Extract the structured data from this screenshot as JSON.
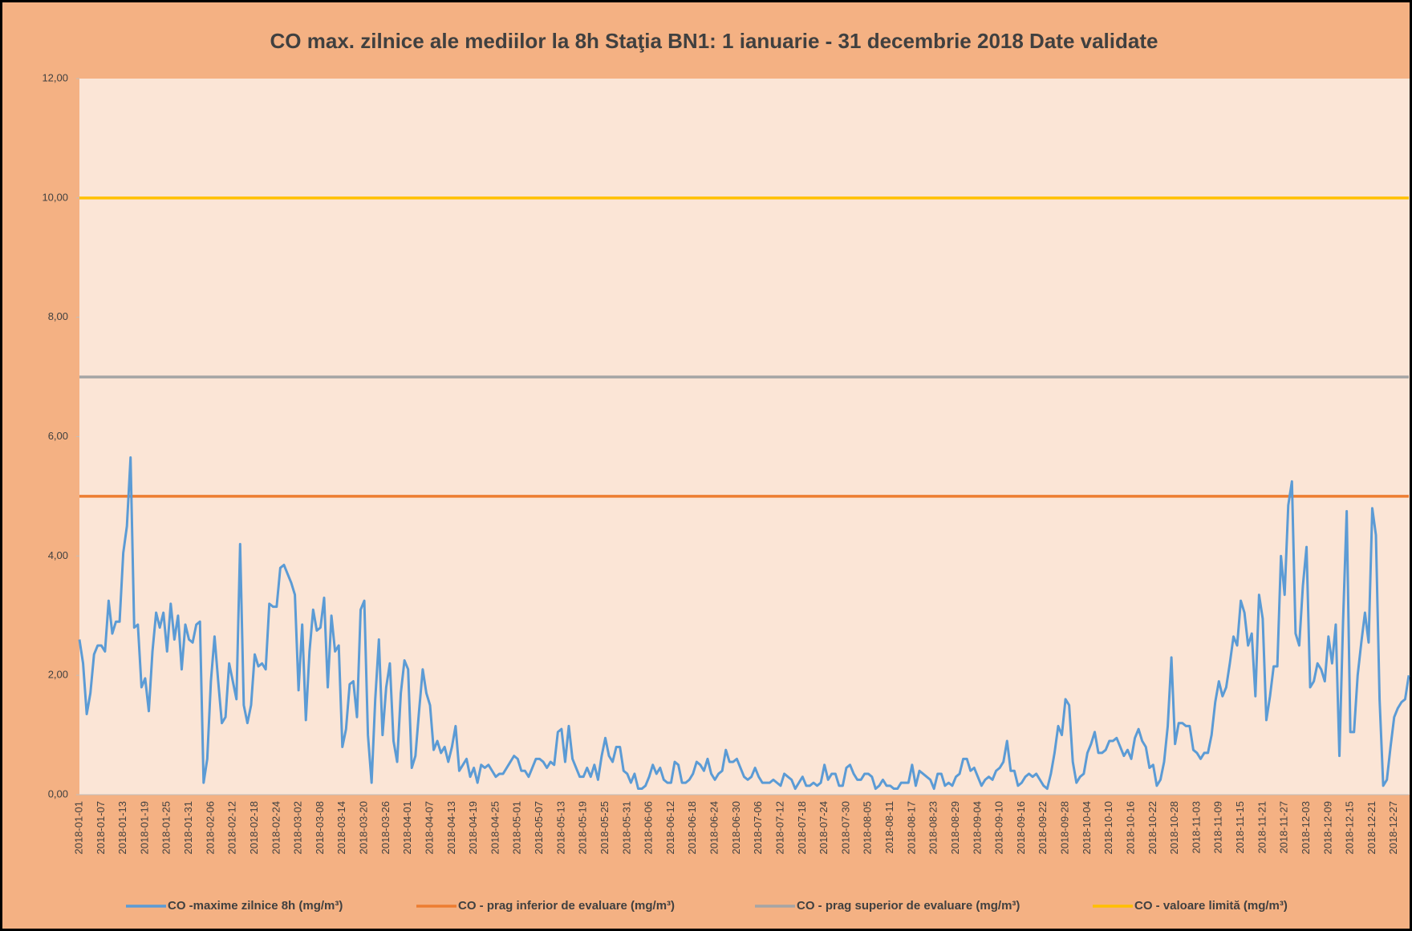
{
  "chart_data": {
    "type": "line",
    "title": "CO max. zilnice ale mediilor la 8h Staţia BN1: 1 ianuarie  - 31 decembrie 2018 Date validate",
    "categories": [
      "2018-01-01",
      null,
      null,
      null,
      null,
      null,
      "2018-01-07",
      null,
      null,
      null,
      null,
      null,
      "2018-01-13",
      null,
      null,
      null,
      null,
      null,
      "2018-01-19",
      null,
      null,
      null,
      null,
      null,
      "2018-01-25",
      null,
      null,
      null,
      null,
      null,
      "2018-01-31",
      null,
      null,
      null,
      null,
      null,
      "2018-02-06",
      null,
      null,
      null,
      null,
      null,
      "2018-02-12",
      null,
      null,
      null,
      null,
      null,
      "2018-02-18",
      null,
      null,
      null,
      null,
      null,
      "2018-02-24",
      null,
      null,
      null,
      null,
      null,
      "2018-03-02",
      null,
      null,
      null,
      null,
      null,
      "2018-03-08",
      null,
      null,
      null,
      null,
      null,
      "2018-03-14",
      null,
      null,
      null,
      null,
      null,
      "2018-03-20",
      null,
      null,
      null,
      null,
      null,
      "2018-03-26",
      null,
      null,
      null,
      null,
      null,
      "2018-04-01",
      null,
      null,
      null,
      null,
      null,
      "2018-04-07",
      null,
      null,
      null,
      null,
      null,
      "2018-04-13",
      null,
      null,
      null,
      null,
      null,
      "2018-04-19",
      null,
      null,
      null,
      null,
      null,
      "2018-04-25",
      null,
      null,
      null,
      null,
      null,
      "2018-05-01",
      null,
      null,
      null,
      null,
      null,
      "2018-05-07",
      null,
      null,
      null,
      null,
      null,
      "2018-05-13",
      null,
      null,
      null,
      null,
      null,
      "2018-05-19",
      null,
      null,
      null,
      null,
      null,
      "2018-05-25",
      null,
      null,
      null,
      null,
      null,
      "2018-05-31",
      null,
      null,
      null,
      null,
      null,
      "2018-06-06",
      null,
      null,
      null,
      null,
      null,
      "2018-06-12",
      null,
      null,
      null,
      null,
      null,
      "2018-06-18",
      null,
      null,
      null,
      null,
      null,
      "2018-06-24",
      null,
      null,
      null,
      null,
      null,
      "2018-06-30",
      null,
      null,
      null,
      null,
      null,
      "2018-07-06",
      null,
      null,
      null,
      null,
      null,
      "2018-07-12",
      null,
      null,
      null,
      null,
      null,
      "2018-07-18",
      null,
      null,
      null,
      null,
      null,
      "2018-07-24",
      null,
      null,
      null,
      null,
      null,
      "2018-07-30",
      null,
      null,
      null,
      null,
      null,
      "2018-08-05",
      null,
      null,
      null,
      null,
      null,
      "2018-08-11",
      null,
      null,
      null,
      null,
      null,
      "2018-08-17",
      null,
      null,
      null,
      null,
      null,
      "2018-08-23",
      null,
      null,
      null,
      null,
      null,
      "2018-08-29",
      null,
      null,
      null,
      null,
      null,
      "2018-09-04",
      null,
      null,
      null,
      null,
      null,
      "2018-09-10",
      null,
      null,
      null,
      null,
      null,
      "2018-09-16",
      null,
      null,
      null,
      null,
      null,
      "2018-09-22",
      null,
      null,
      null,
      null,
      null,
      "2018-09-28",
      null,
      null,
      null,
      null,
      null,
      "2018-10-04",
      null,
      null,
      null,
      null,
      null,
      "2018-10-10",
      null,
      null,
      null,
      null,
      null,
      "2018-10-16",
      null,
      null,
      null,
      null,
      null,
      "2018-10-22",
      null,
      null,
      null,
      null,
      null,
      "2018-10-28",
      null,
      null,
      null,
      null,
      null,
      "2018-11-03",
      null,
      null,
      null,
      null,
      null,
      "2018-11-09",
      null,
      null,
      null,
      null,
      null,
      "2018-11-15",
      null,
      null,
      null,
      null,
      null,
      "2018-11-21",
      null,
      null,
      null,
      null,
      null,
      "2018-11-27",
      null,
      null,
      null,
      null,
      null,
      "2018-12-03",
      null,
      null,
      null,
      null,
      null,
      "2018-12-09",
      null,
      null,
      null,
      null,
      null,
      "2018-12-15",
      null,
      null,
      null,
      null,
      null,
      "2018-12-21",
      null,
      null,
      null,
      null,
      null,
      "2018-12-27",
      null,
      null,
      null,
      null
    ],
    "series": [
      {
        "name": "CO -maxime zilnice 8h  (mg/m³)",
        "color": "#5b9bd5",
        "values": [
          2.6,
          2.2,
          1.35,
          1.7,
          2.35,
          2.5,
          2.5,
          2.4,
          3.25,
          2.7,
          2.9,
          2.9,
          4.05,
          4.5,
          5.65,
          2.8,
          2.85,
          1.8,
          1.95,
          1.4,
          2.4,
          3.05,
          2.8,
          3.05,
          2.4,
          3.2,
          2.6,
          3.0,
          2.1,
          2.85,
          2.6,
          2.55,
          2.85,
          2.9,
          0.2,
          0.6,
          1.9,
          2.65,
          1.9,
          1.2,
          1.3,
          2.2,
          1.9,
          1.6,
          4.2,
          1.5,
          1.2,
          1.5,
          2.35,
          2.15,
          2.2,
          2.1,
          3.2,
          3.15,
          3.15,
          3.8,
          3.85,
          3.7,
          3.55,
          3.35,
          1.75,
          2.85,
          1.25,
          2.4,
          3.1,
          2.75,
          2.8,
          3.3,
          1.8,
          3.0,
          2.4,
          2.5,
          0.8,
          1.1,
          1.85,
          1.9,
          1.3,
          3.1,
          3.25,
          1.0,
          0.2,
          1.6,
          2.6,
          1.0,
          1.8,
          2.2,
          0.9,
          0.55,
          1.7,
          2.25,
          2.1,
          0.45,
          0.65,
          1.4,
          2.1,
          1.7,
          1.5,
          0.75,
          0.9,
          0.7,
          0.8,
          0.55,
          0.8,
          1.15,
          0.4,
          0.5,
          0.6,
          0.3,
          0.45,
          0.2,
          0.5,
          0.45,
          0.5,
          0.4,
          0.3,
          0.35,
          0.35,
          0.45,
          0.55,
          0.65,
          0.6,
          0.4,
          0.4,
          0.3,
          0.45,
          0.6,
          0.6,
          0.55,
          0.45,
          0.55,
          0.5,
          1.05,
          1.1,
          0.55,
          1.15,
          0.6,
          0.45,
          0.3,
          0.3,
          0.45,
          0.3,
          0.5,
          0.25,
          0.65,
          0.95,
          0.65,
          0.55,
          0.8,
          0.8,
          0.4,
          0.35,
          0.2,
          0.35,
          0.1,
          0.1,
          0.15,
          0.3,
          0.5,
          0.35,
          0.45,
          0.25,
          0.2,
          0.2,
          0.55,
          0.5,
          0.2,
          0.2,
          0.25,
          0.35,
          0.55,
          0.5,
          0.4,
          0.6,
          0.35,
          0.25,
          0.35,
          0.4,
          0.75,
          0.55,
          0.55,
          0.6,
          0.45,
          0.3,
          0.25,
          0.3,
          0.45,
          0.3,
          0.2,
          0.2,
          0.2,
          0.25,
          0.2,
          0.15,
          0.35,
          0.3,
          0.25,
          0.1,
          0.2,
          0.3,
          0.15,
          0.15,
          0.2,
          0.15,
          0.2,
          0.5,
          0.25,
          0.35,
          0.35,
          0.15,
          0.15,
          0.45,
          0.5,
          0.35,
          0.25,
          0.25,
          0.35,
          0.35,
          0.3,
          0.1,
          0.15,
          0.25,
          0.15,
          0.15,
          0.1,
          0.1,
          0.2,
          0.2,
          0.2,
          0.5,
          0.15,
          0.4,
          0.35,
          0.3,
          0.25,
          0.1,
          0.35,
          0.35,
          0.15,
          0.2,
          0.15,
          0.3,
          0.35,
          0.6,
          0.6,
          0.4,
          0.45,
          0.3,
          0.15,
          0.25,
          0.3,
          0.25,
          0.4,
          0.45,
          0.55,
          0.9,
          0.4,
          0.4,
          0.15,
          0.2,
          0.3,
          0.35,
          0.3,
          0.35,
          0.25,
          0.15,
          0.1,
          0.35,
          0.7,
          1.15,
          1.0,
          1.6,
          1.5,
          0.55,
          0.2,
          0.3,
          0.35,
          0.7,
          0.85,
          1.05,
          0.7,
          0.7,
          0.75,
          0.9,
          0.9,
          0.95,
          0.8,
          0.65,
          0.75,
          0.6,
          0.95,
          1.1,
          0.9,
          0.8,
          0.45,
          0.5,
          0.15,
          0.25,
          0.55,
          1.15,
          2.3,
          0.85,
          1.2,
          1.2,
          1.15,
          1.15,
          0.75,
          0.7,
          0.6,
          0.7,
          0.7,
          1.0,
          1.55,
          1.9,
          1.65,
          1.8,
          2.2,
          2.65,
          2.5,
          3.25,
          3.05,
          2.5,
          2.7,
          1.65,
          3.35,
          2.95,
          1.25,
          1.65,
          2.15,
          2.15,
          4.0,
          3.35,
          4.85,
          5.25,
          2.7,
          2.5,
          3.5,
          4.15,
          1.8,
          1.9,
          2.2,
          2.1,
          1.9,
          2.65,
          2.2,
          2.85,
          0.65,
          2.9,
          4.75,
          1.05,
          1.05,
          2.0,
          2.55,
          3.05,
          2.55,
          4.8,
          4.35,
          1.6,
          0.15,
          0.25,
          0.8,
          1.3,
          1.45,
          1.55,
          1.6,
          2.0
        ]
      }
    ],
    "thresholds": [
      {
        "name": "CO - prag inferior de evaluare  (mg/m³)",
        "color": "#ed7d31",
        "value": 5
      },
      {
        "name": "CO - prag superior de evaluare (mg/m³)",
        "color": "#a5a5a5",
        "value": 7
      },
      {
        "name": "CO - valoare limită  (mg/m³)",
        "color": "#ffc000",
        "value": 10
      }
    ],
    "ylim": [
      0,
      12
    ],
    "yticks": [
      {
        "value": 0,
        "label": "0,00"
      },
      {
        "value": 2,
        "label": "2,00"
      },
      {
        "value": 4,
        "label": "4,00"
      },
      {
        "value": 6,
        "label": "6,00"
      },
      {
        "value": 8,
        "label": "8,00"
      },
      {
        "value": 10,
        "label": "10,00"
      },
      {
        "value": 12,
        "label": "12,00"
      }
    ],
    "legend": "bottom"
  }
}
